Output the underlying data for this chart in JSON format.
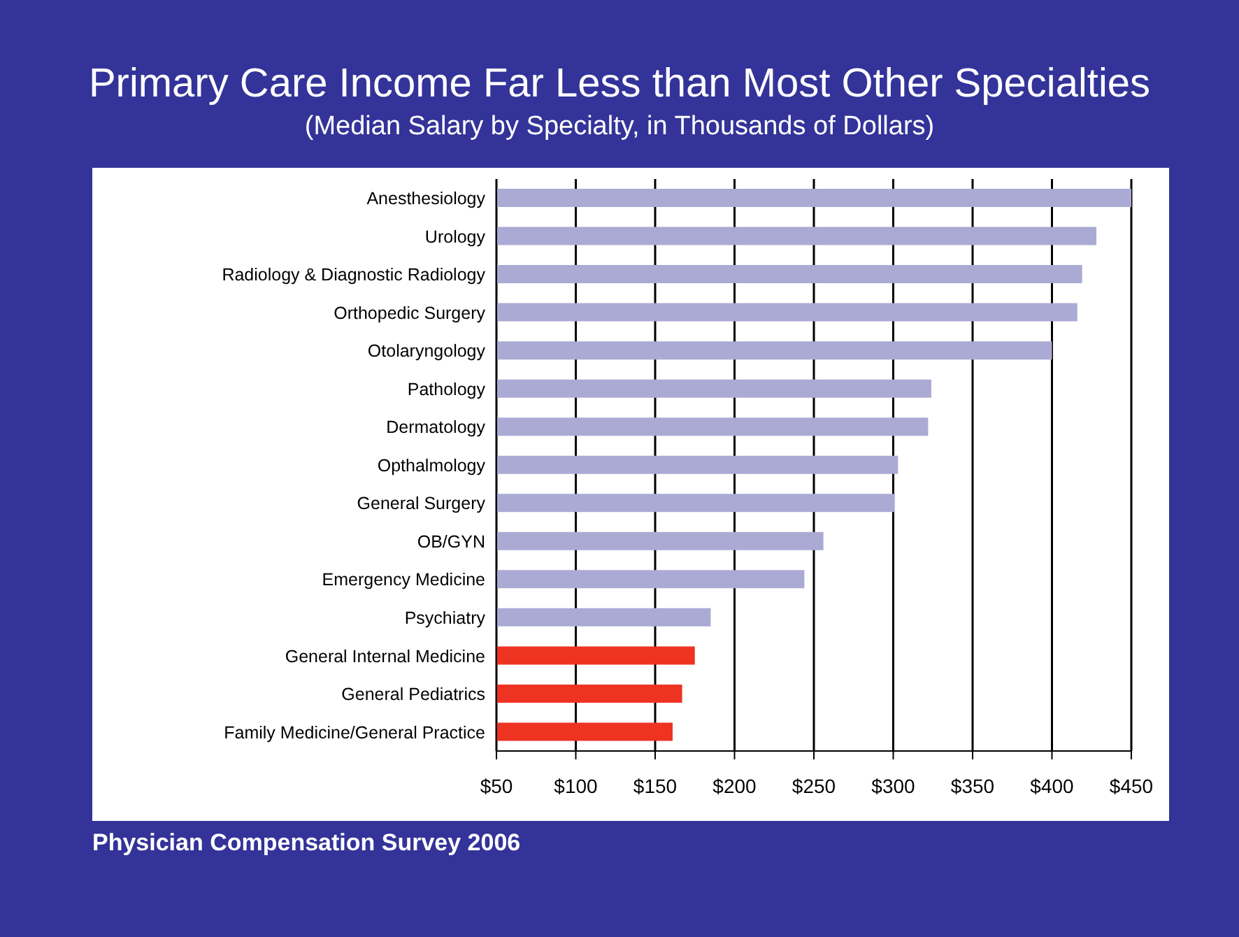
{
  "chart_data": {
    "type": "bar",
    "orientation": "horizontal",
    "title": "Primary Care Income Far Less than Most Other Specialties",
    "subtitle": "(Median Salary by Specialty, in Thousands of Dollars)",
    "categories": [
      "Anesthesiology",
      "Urology",
      "Radiology & Diagnostic Radiology",
      "Orthopedic Surgery",
      "Otolaryngology",
      "Pathology",
      "Dermatology",
      "Opthalmology",
      "General Surgery",
      "OB/GYN",
      "Emergency Medicine",
      "Psychiatry",
      "General Internal Medicine",
      "General Pediatrics",
      "Family Medicine/General Practice"
    ],
    "values": [
      450,
      428,
      419,
      416,
      400,
      324,
      322,
      303,
      301,
      256,
      244,
      185,
      175,
      167,
      161
    ],
    "colors": [
      "#aaaad4",
      "#aaaad4",
      "#aaaad4",
      "#aaaad4",
      "#aaaad4",
      "#aaaad4",
      "#aaaad4",
      "#aaaad4",
      "#aaaad4",
      "#aaaad4",
      "#aaaad4",
      "#aaaad4",
      "#ee3322",
      "#ee3322",
      "#ee3322"
    ],
    "xlim": [
      50,
      450
    ],
    "xticks": [
      {
        "value": 50,
        "label": "$50"
      },
      {
        "value": 100,
        "label": "$100"
      },
      {
        "value": 150,
        "label": "$150"
      },
      {
        "value": 200,
        "label": "$200"
      },
      {
        "value": 250,
        "label": "$250"
      },
      {
        "value": 300,
        "label": "$300"
      },
      {
        "value": 350,
        "label": "$350"
      },
      {
        "value": 400,
        "label": "$400"
      },
      {
        "value": 450,
        "label": "$450"
      }
    ],
    "grid": "x",
    "legend": false,
    "annotations": [
      "Physician Compensation Survey 2006"
    ]
  }
}
